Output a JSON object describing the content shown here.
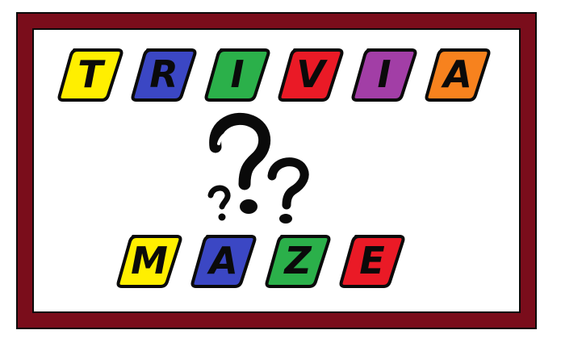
{
  "title_word_1": {
    "tiles": [
      {
        "letter": "T",
        "color": "#ffef00"
      },
      {
        "letter": "R",
        "color": "#3b47c4"
      },
      {
        "letter": "I",
        "color": "#2bb04a"
      },
      {
        "letter": "V",
        "color": "#ea1a26"
      },
      {
        "letter": "I",
        "color": "#a23ea6"
      },
      {
        "letter": "A",
        "color": "#f7821e"
      }
    ]
  },
  "title_word_2": {
    "tiles": [
      {
        "letter": "M",
        "color": "#ffef00"
      },
      {
        "letter": "A",
        "color": "#3b47c4"
      },
      {
        "letter": "Z",
        "color": "#2bb04a"
      },
      {
        "letter": "E",
        "color": "#ea1a26"
      }
    ]
  },
  "frame": {
    "border_color": "#7a0d1b",
    "background": "#ffffff"
  },
  "logo": {
    "icon": "question-marks-icon"
  }
}
